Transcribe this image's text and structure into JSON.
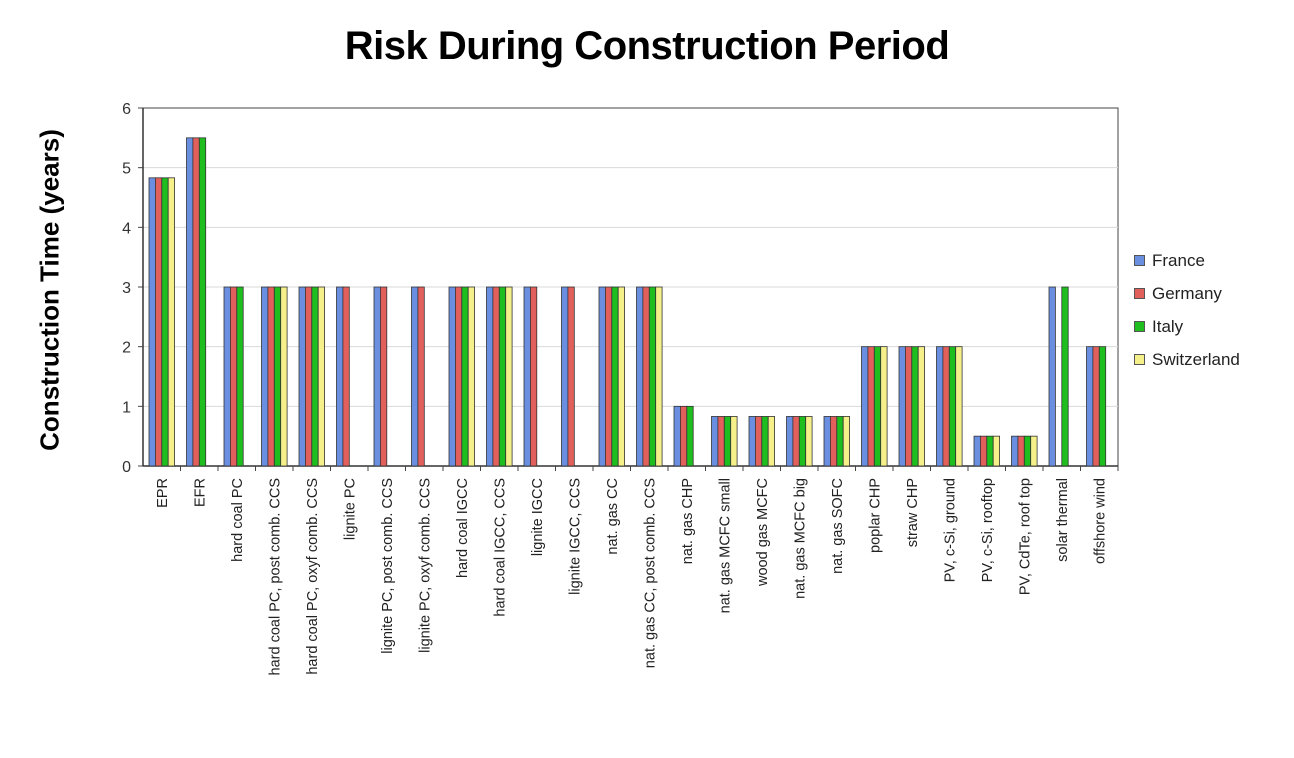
{
  "chart_data": {
    "type": "bar",
    "title": "Risk During Construction Period",
    "xlabel": "",
    "ylabel": "Construction Time (years)",
    "ylim": [
      0,
      6
    ],
    "yticks": [
      0,
      1,
      2,
      3,
      4,
      5,
      6
    ],
    "grid": true,
    "legend_position": "right",
    "categories": [
      "EPR",
      "EFR",
      "hard coal PC",
      "hard coal PC, post comb. CCS",
      "hard coal PC, oxyf comb. CCS",
      "lignite PC",
      "lignite PC, post comb. CCS",
      "lignite PC, oxyf comb. CCS",
      "hard coal IGCC",
      "hard coal IGCC, CCS",
      "lignite IGCC",
      "lignite IGCC, CCS",
      "nat. gas CC",
      "nat. gas CC, post comb. CCS",
      "nat. gas CHP",
      "nat. gas MCFC small",
      "wood gas MCFC",
      "nat. gas MCFC big",
      "nat. gas SOFC",
      "poplar CHP",
      "straw CHP",
      "PV, c-Si, ground",
      "PV, c-Si, rooftop",
      "PV, CdTe, roof top",
      "solar thermal",
      "offshore wind"
    ],
    "series": [
      {
        "name": "France",
        "color": "#6b8fe0",
        "values": [
          4.83,
          5.5,
          3,
          3,
          3,
          3,
          3,
          3,
          3,
          3,
          3,
          3,
          3,
          3,
          1,
          0.83,
          0.83,
          0.83,
          0.83,
          2,
          2,
          2,
          0.5,
          0.5,
          3,
          2
        ]
      },
      {
        "name": "Germany",
        "color": "#e2605c",
        "values": [
          4.83,
          5.5,
          3,
          3,
          3,
          3,
          3,
          3,
          3,
          3,
          3,
          3,
          3,
          3,
          1,
          0.83,
          0.83,
          0.83,
          0.83,
          2,
          2,
          2,
          0.5,
          0.5,
          0,
          2
        ]
      },
      {
        "name": "Italy",
        "color": "#1fbe1f",
        "values": [
          4.83,
          5.5,
          3,
          3,
          3,
          0,
          0,
          0,
          3,
          3,
          0,
          0,
          3,
          3,
          1,
          0.83,
          0.83,
          0.83,
          0.83,
          2,
          2,
          2,
          0.5,
          0.5,
          3,
          2
        ]
      },
      {
        "name": "Switzerland",
        "color": "#f5f08a",
        "values": [
          4.83,
          0,
          0,
          3,
          3,
          0,
          0,
          0,
          3,
          3,
          0,
          0,
          3,
          3,
          0,
          0.83,
          0.83,
          0.83,
          0.83,
          2,
          2,
          2,
          0.5,
          0.5,
          0,
          0
        ]
      }
    ]
  }
}
